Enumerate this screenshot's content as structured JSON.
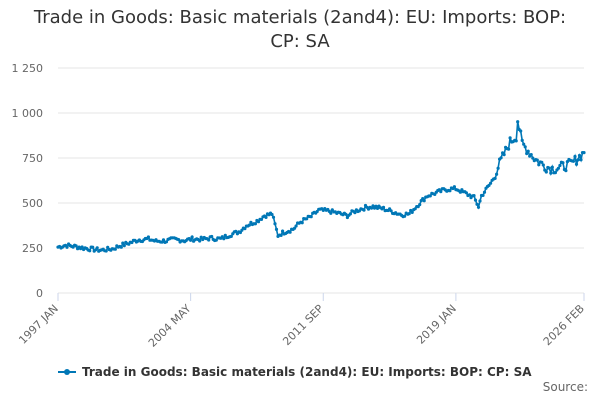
{
  "chart_data": {
    "type": "line",
    "title_lines": [
      "Trade in Goods: Basic materials (2and4): EU: Imports: BOP:",
      "CP: SA"
    ],
    "xlabel": "",
    "ylabel": "",
    "ylim": [
      0,
      1250
    ],
    "y_ticks": [
      0,
      250,
      500,
      750,
      1000,
      1250
    ],
    "y_tick_labels": [
      "0",
      "250",
      "500",
      "750",
      "1 000",
      "1 250"
    ],
    "x_range": [
      "1997-01",
      "2026-02"
    ],
    "x_ticks": [
      "1997-01",
      "2004-05",
      "2011-09",
      "2019-01",
      "2026-02"
    ],
    "x_tick_labels": [
      "1997 JAN",
      "2004 MAY",
      "2011 SEP",
      "2019 JAN",
      "2026 FEB"
    ],
    "grid": "horizontal",
    "legend_position": "bottom",
    "series": [
      {
        "name": "Trade in Goods: Basic materials (2and4): EU: Imports: BOP: CP: SA",
        "color": "#0077b6",
        "anchors": [
          [
            "1997-01",
            255
          ],
          [
            "1997-06",
            265
          ],
          [
            "1998-01",
            258
          ],
          [
            "1998-06",
            250
          ],
          [
            "1999-01",
            242
          ],
          [
            "1999-06",
            238
          ],
          [
            "2000-01",
            245
          ],
          [
            "2000-06",
            262
          ],
          [
            "2001-01",
            280
          ],
          [
            "2001-06",
            295
          ],
          [
            "2002-01",
            300
          ],
          [
            "2002-06",
            288
          ],
          [
            "2003-01",
            290
          ],
          [
            "2003-06",
            298
          ],
          [
            "2004-01",
            292
          ],
          [
            "2004-06",
            300
          ],
          [
            "2005-01",
            298
          ],
          [
            "2005-06",
            305
          ],
          [
            "2006-01",
            300
          ],
          [
            "2006-06",
            320
          ],
          [
            "2007-01",
            340
          ],
          [
            "2007-06",
            375
          ],
          [
            "2008-01",
            400
          ],
          [
            "2008-06",
            430
          ],
          [
            "2008-11",
            440
          ],
          [
            "2009-03",
            320
          ],
          [
            "2009-06",
            335
          ],
          [
            "2010-01",
            355
          ],
          [
            "2010-06",
            395
          ],
          [
            "2011-01",
            425
          ],
          [
            "2011-06",
            460
          ],
          [
            "2012-01",
            455
          ],
          [
            "2012-06",
            445
          ],
          [
            "2013-01",
            430
          ],
          [
            "2013-06",
            455
          ],
          [
            "2014-01",
            475
          ],
          [
            "2014-06",
            480
          ],
          [
            "2015-01",
            468
          ],
          [
            "2015-06",
            455
          ],
          [
            "2016-01",
            435
          ],
          [
            "2016-06",
            440
          ],
          [
            "2017-01",
            500
          ],
          [
            "2017-06",
            540
          ],
          [
            "2018-01",
            560
          ],
          [
            "2018-06",
            575
          ],
          [
            "2019-01",
            580
          ],
          [
            "2019-06",
            560
          ],
          [
            "2020-01",
            530
          ],
          [
            "2020-04",
            480
          ],
          [
            "2020-06",
            540
          ],
          [
            "2021-01",
            620
          ],
          [
            "2021-06",
            720
          ],
          [
            "2022-01",
            840
          ],
          [
            "2022-05",
            870
          ],
          [
            "2022-06",
            960
          ],
          [
            "2022-09",
            830
          ],
          [
            "2023-01",
            790
          ],
          [
            "2023-06",
            740
          ],
          [
            "2024-01",
            700
          ],
          [
            "2024-06",
            690
          ],
          [
            "2025-01",
            705
          ],
          [
            "2025-06",
            720
          ],
          [
            "2026-02",
            780
          ]
        ]
      }
    ]
  },
  "legend": {
    "label": "Trade in Goods: Basic materials (2and4): EU: Imports: BOP: CP: SA"
  },
  "footer": {
    "source_label": "Source:"
  }
}
